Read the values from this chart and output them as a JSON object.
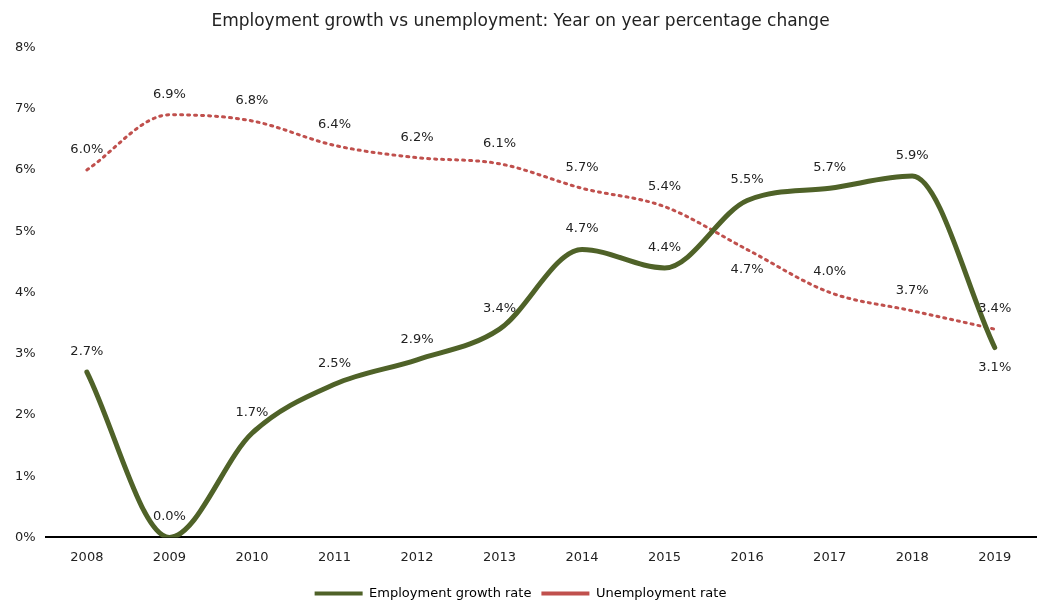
{
  "chart_data": {
    "type": "line",
    "title": "Employment growth vs unemployment: Year on year percentage change",
    "categories": [
      "2008",
      "2009",
      "2010",
      "2011",
      "2012",
      "2013",
      "2014",
      "2015",
      "2016",
      "2017",
      "2018",
      "2019"
    ],
    "series": [
      {
        "name": "Employment growth rate",
        "color": "#4f6228",
        "line_style": "solid",
        "values": [
          2.7,
          0.0,
          1.7,
          2.5,
          2.9,
          3.4,
          4.7,
          4.4,
          5.5,
          5.7,
          5.9,
          3.1
        ],
        "value_labels": [
          "2.7%",
          "0.0%",
          "1.7%",
          "2.5%",
          "2.9%",
          "3.4%",
          "4.7%",
          "4.4%",
          "5.5%",
          "5.7%",
          "5.9%",
          "3.1%"
        ]
      },
      {
        "name": "Unemployment rate",
        "color": "#c0504d",
        "line_style": "dotted",
        "values": [
          6.0,
          6.9,
          6.8,
          6.4,
          6.2,
          6.1,
          5.7,
          5.4,
          4.7,
          4.0,
          3.7,
          3.4
        ],
        "value_labels": [
          "6.0%",
          "6.9%",
          "6.8%",
          "6.4%",
          "6.2%",
          "6.1%",
          "5.7%",
          "5.4%",
          "4.7%",
          "4.0%",
          "3.7%",
          "3.4%"
        ]
      }
    ],
    "ylim": [
      0,
      8
    ],
    "yticks": [
      {
        "value": 0,
        "label": "0%"
      },
      {
        "value": 1,
        "label": "1%"
      },
      {
        "value": 2,
        "label": "2%"
      },
      {
        "value": 3,
        "label": "3%"
      },
      {
        "value": 4,
        "label": "4%"
      },
      {
        "value": 5,
        "label": "5%"
      },
      {
        "value": 6,
        "label": "6%"
      },
      {
        "value": 7,
        "label": "7%"
      },
      {
        "value": 8,
        "label": "8%"
      }
    ],
    "grid": false,
    "legend": "bottom",
    "marker": "none"
  }
}
